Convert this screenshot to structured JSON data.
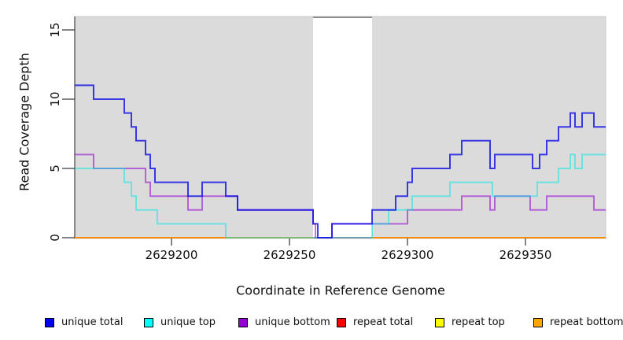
{
  "chart_data": {
    "type": "line",
    "subtype": "step-coverage",
    "title": "",
    "xlabel": "Coordinate in Reference Genome",
    "ylabel": "Read Coverage Depth",
    "xlim": [
      2629159,
      2629384
    ],
    "ylim": [
      0,
      16
    ],
    "x_ticks": [
      {
        "value": 2629200,
        "label": "2629200"
      },
      {
        "value": 2629250,
        "label": "2629250"
      },
      {
        "value": 2629300,
        "label": "2629300"
      },
      {
        "value": 2629350,
        "label": "2629350"
      }
    ],
    "y_ticks": [
      {
        "value": 0,
        "label": "0"
      },
      {
        "value": 5,
        "label": "5"
      },
      {
        "value": 10,
        "label": "10"
      },
      {
        "value": 15,
        "label": "15"
      }
    ],
    "grid": false,
    "legend_position": "bottom",
    "panel_bg": "#DBDBDB",
    "masked_region": {
      "x0": 2629260,
      "x1": 2629285,
      "color": "#FFFFFF",
      "top_edge_color": "#8D8D8D"
    },
    "series": [
      {
        "name": "repeat total",
        "legend_color": "#FF0000",
        "line_color": "rgba(220,20,60,0.72)",
        "segments": [
          {
            "points": [
              [
                2629159,
                0
              ]
            ],
            "end_x": 2629384
          }
        ]
      },
      {
        "name": "repeat top",
        "legend_color": "#FFFF00",
        "line_color": "#FFFF00",
        "segments": [
          {
            "points": [
              [
                2629159,
                0
              ]
            ],
            "end_x": 2629260
          },
          {
            "points": [
              [
                2629285,
                0
              ]
            ],
            "end_x": 2629384
          }
        ]
      },
      {
        "name": "repeat bottom",
        "legend_color": "#FFA500",
        "line_color": "#FF8C00",
        "segments": [
          {
            "points": [
              [
                2629159,
                0
              ]
            ],
            "end_x": 2629260
          },
          {
            "points": [
              [
                2629285,
                0
              ]
            ],
            "end_x": 2629384
          }
        ]
      },
      {
        "name": "unique bottom",
        "legend_color": "#9400D3",
        "line_color": "rgba(148,0,211,0.55)",
        "segments": [
          {
            "points": [
              [
                2629159,
                6
              ],
              [
                2629167,
                5
              ],
              [
                2629189,
                4
              ],
              [
                2629191,
                3
              ],
              [
                2629207,
                2
              ],
              [
                2629213,
                3
              ],
              [
                2629228,
                2
              ],
              [
                2629260,
                1
              ],
              [
                2629261,
                0
              ],
              [
                2629268,
                1
              ],
              [
                2629300,
                2
              ],
              [
                2629323,
                3
              ],
              [
                2629335,
                2
              ],
              [
                2629337,
                3
              ],
              [
                2629352,
                2
              ],
              [
                2629359,
                3
              ],
              [
                2629379,
                2
              ]
            ],
            "end_x": 2629384
          }
        ]
      },
      {
        "name": "unique top",
        "legend_color": "#00FFFF",
        "line_color": "rgba(0,230,230,0.5)",
        "segments": [
          {
            "points": [
              [
                2629159,
                5
              ],
              [
                2629180,
                4
              ],
              [
                2629183,
                3
              ],
              [
                2629185,
                2
              ],
              [
                2629194,
                1
              ],
              [
                2629223,
                0
              ],
              [
                2629285,
                1
              ],
              [
                2629292,
                2
              ],
              [
                2629302,
                3
              ],
              [
                2629318,
                4
              ],
              [
                2629336,
                3
              ],
              [
                2629355,
                4
              ],
              [
                2629364,
                5
              ],
              [
                2629369,
                6
              ],
              [
                2629371,
                5
              ],
              [
                2629374,
                6
              ]
            ],
            "end_x": 2629384
          }
        ]
      },
      {
        "name": "unique total",
        "legend_color": "#0000EE",
        "line_color": "rgba(10,10,230,0.78)",
        "segments": [
          {
            "points": [
              [
                2629159,
                11
              ],
              [
                2629167,
                10
              ],
              [
                2629180,
                9
              ],
              [
                2629183,
                8
              ],
              [
                2629185,
                7
              ],
              [
                2629189,
                6
              ],
              [
                2629191,
                5
              ],
              [
                2629193,
                4
              ],
              [
                2629207,
                3
              ],
              [
                2629213,
                4
              ],
              [
                2629223,
                3
              ],
              [
                2629228,
                2
              ],
              [
                2629260,
                1
              ],
              [
                2629262,
                0
              ],
              [
                2629268,
                1
              ],
              [
                2629285,
                2
              ],
              [
                2629295,
                3
              ],
              [
                2629300,
                4
              ],
              [
                2629302,
                5
              ],
              [
                2629318,
                6
              ],
              [
                2629323,
                7
              ],
              [
                2629335,
                5
              ],
              [
                2629337,
                6
              ],
              [
                2629353,
                5
              ],
              [
                2629356,
                6
              ],
              [
                2629359,
                7
              ],
              [
                2629364,
                8
              ],
              [
                2629369,
                9
              ],
              [
                2629371,
                8
              ],
              [
                2629374,
                9
              ],
              [
                2629379,
                8
              ]
            ],
            "end_x": 2629384
          }
        ]
      }
    ],
    "legend": [
      {
        "label": "unique total",
        "color": "#0000EE"
      },
      {
        "label": "unique top",
        "color": "#00FFFF"
      },
      {
        "label": "unique bottom",
        "color": "#9400D3"
      },
      {
        "label": "repeat total",
        "color": "#FF0000"
      },
      {
        "label": "repeat top",
        "color": "#FFFF00"
      },
      {
        "label": "repeat bottom",
        "color": "#FFA500"
      }
    ]
  }
}
